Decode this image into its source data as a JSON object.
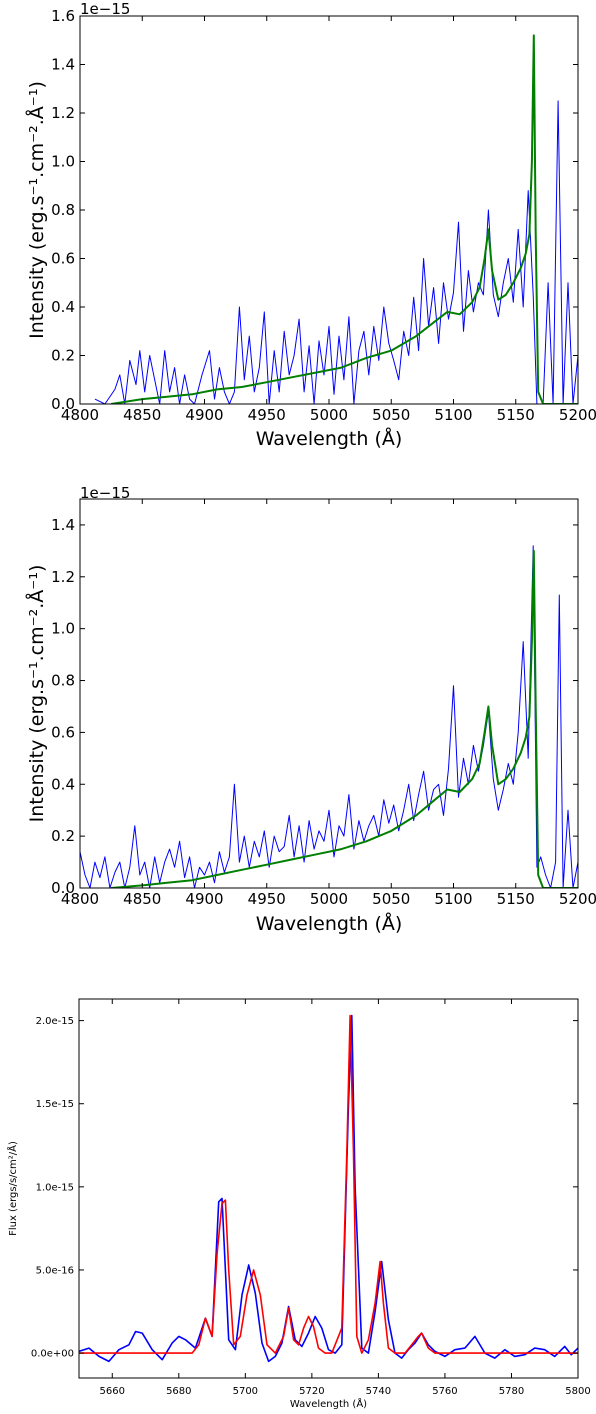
{
  "chart_data": [
    {
      "type": "line",
      "xlabel": "Wavelength (Å)",
      "ylabel": "Intensity (erg.s⁻¹.cm⁻².Å⁻¹)",
      "offset_text": "1e−15",
      "xlim": [
        4800,
        5200
      ],
      "ylim": [
        0,
        1.6
      ],
      "xticks": [
        "4800",
        "4850",
        "4900",
        "4950",
        "5000",
        "5050",
        "5100",
        "5150",
        "5200"
      ],
      "yticks": [
        "0.0",
        "0.2",
        "0.4",
        "0.6",
        "0.8",
        "1.0",
        "1.2",
        "1.4",
        "1.6"
      ],
      "grid": false,
      "colors": {
        "observed": "#0000ff",
        "model": "#007f00"
      },
      "series": [
        {
          "role": "observed",
          "x": [
            4812,
            4820,
            4828,
            4832,
            4836,
            4840,
            4845,
            4848,
            4852,
            4856,
            4860,
            4864,
            4868,
            4872,
            4876,
            4880,
            4884,
            4888,
            4892,
            4898,
            4904,
            4908,
            4912,
            4916,
            4920,
            4924,
            4928,
            4932,
            4936,
            4940,
            4944,
            4948,
            4952,
            4956,
            4960,
            4964,
            4968,
            4972,
            4976,
            4980,
            4984,
            4988,
            4992,
            4996,
            5000,
            5004,
            5008,
            5012,
            5016,
            5020,
            5024,
            5028,
            5032,
            5036,
            5040,
            5044,
            5048,
            5052,
            5056,
            5060,
            5064,
            5068,
            5072,
            5076,
            5080,
            5084,
            5088,
            5092,
            5096,
            5100,
            5104,
            5108,
            5112,
            5116,
            5120,
            5124,
            5128,
            5132,
            5136,
            5140,
            5144,
            5148,
            5152,
            5156,
            5160,
            5164,
            5167,
            5170,
            5172,
            5176,
            5180,
            5184,
            5188,
            5192,
            5196,
            5200
          ],
          "y": [
            0.02,
            0.0,
            0.06,
            0.12,
            0.0,
            0.18,
            0.08,
            0.22,
            0.05,
            0.2,
            0.1,
            0.0,
            0.22,
            0.05,
            0.15,
            0.0,
            0.12,
            0.02,
            0.0,
            0.12,
            0.22,
            0.02,
            0.15,
            0.05,
            0.0,
            0.05,
            0.4,
            0.1,
            0.28,
            0.05,
            0.15,
            0.38,
            0.0,
            0.22,
            0.05,
            0.3,
            0.12,
            0.2,
            0.35,
            0.05,
            0.24,
            0.0,
            0.26,
            0.12,
            0.32,
            0.04,
            0.28,
            0.1,
            0.36,
            0.0,
            0.22,
            0.3,
            0.12,
            0.32,
            0.18,
            0.4,
            0.25,
            0.18,
            0.1,
            0.3,
            0.2,
            0.44,
            0.22,
            0.6,
            0.32,
            0.48,
            0.25,
            0.5,
            0.35,
            0.46,
            0.75,
            0.3,
            0.55,
            0.38,
            0.5,
            0.45,
            0.8,
            0.45,
            0.36,
            0.5,
            0.6,
            0.42,
            0.72,
            0.4,
            0.88,
            0.45,
            0.0,
            0.0,
            0.0,
            0.5,
            0.0,
            1.25,
            0.0,
            0.5,
            0.0,
            0.2
          ]
        },
        {
          "role": "model",
          "x": [
            4825,
            4850,
            4870,
            4890,
            4910,
            4930,
            4950,
            4970,
            4990,
            5010,
            5030,
            5050,
            5070,
            5085,
            5095,
            5105,
            5115,
            5121,
            5125,
            5128,
            5131,
            5136,
            5142,
            5148,
            5154,
            5158,
            5161,
            5163,
            5164.5,
            5166,
            5168,
            5172,
            5200
          ],
          "y": [
            0.0,
            0.02,
            0.03,
            0.04,
            0.06,
            0.07,
            0.09,
            0.11,
            0.13,
            0.15,
            0.19,
            0.22,
            0.28,
            0.34,
            0.38,
            0.37,
            0.42,
            0.48,
            0.6,
            0.72,
            0.55,
            0.43,
            0.45,
            0.5,
            0.56,
            0.62,
            0.7,
            1.0,
            1.52,
            0.7,
            0.05,
            0.0,
            0.0
          ]
        }
      ]
    },
    {
      "type": "line",
      "xlabel": "Wavelength (Å)",
      "ylabel": "Intensity (erg.s⁻¹.cm⁻².Å⁻¹)",
      "offset_text": "1e−15",
      "xlim": [
        4800,
        5200
      ],
      "ylim": [
        0,
        1.5
      ],
      "xticks": [
        "4800",
        "4850",
        "4900",
        "4950",
        "5000",
        "5050",
        "5100",
        "5150",
        "5200"
      ],
      "yticks": [
        "0.0",
        "0.2",
        "0.4",
        "0.6",
        "0.8",
        "1.0",
        "1.2",
        "1.4"
      ],
      "grid": false,
      "colors": {
        "observed": "#0000ff",
        "model": "#007f00"
      },
      "series": [
        {
          "role": "observed",
          "x": [
            4800,
            4804,
            4808,
            4812,
            4816,
            4820,
            4824,
            4828,
            4832,
            4836,
            4840,
            4844,
            4848,
            4852,
            4856,
            4860,
            4864,
            4868,
            4872,
            4876,
            4880,
            4884,
            4888,
            4892,
            4896,
            4900,
            4904,
            4908,
            4912,
            4916,
            4920,
            4924,
            4928,
            4932,
            4936,
            4940,
            4944,
            4948,
            4952,
            4956,
            4960,
            4964,
            4968,
            4972,
            4976,
            4980,
            4984,
            4988,
            4992,
            4996,
            5000,
            5004,
            5008,
            5012,
            5016,
            5020,
            5024,
            5028,
            5032,
            5036,
            5040,
            5044,
            5048,
            5052,
            5056,
            5060,
            5064,
            5068,
            5072,
            5076,
            5080,
            5084,
            5088,
            5092,
            5096,
            5100,
            5104,
            5108,
            5112,
            5116,
            5120,
            5124,
            5128,
            5132,
            5136,
            5140,
            5144,
            5148,
            5152,
            5156,
            5160,
            5164,
            5167,
            5170,
            5174,
            5178,
            5182,
            5185,
            5188,
            5192,
            5196,
            5200
          ],
          "y": [
            0.14,
            0.05,
            0.0,
            0.1,
            0.04,
            0.12,
            0.0,
            0.06,
            0.1,
            0.0,
            0.08,
            0.24,
            0.05,
            0.1,
            0.0,
            0.12,
            0.02,
            0.1,
            0.15,
            0.08,
            0.18,
            0.04,
            0.12,
            0.0,
            0.08,
            0.05,
            0.1,
            0.02,
            0.14,
            0.06,
            0.12,
            0.4,
            0.1,
            0.2,
            0.08,
            0.18,
            0.12,
            0.22,
            0.08,
            0.2,
            0.14,
            0.16,
            0.28,
            0.12,
            0.24,
            0.1,
            0.26,
            0.15,
            0.22,
            0.18,
            0.3,
            0.12,
            0.24,
            0.2,
            0.36,
            0.15,
            0.26,
            0.18,
            0.24,
            0.28,
            0.2,
            0.34,
            0.25,
            0.32,
            0.22,
            0.3,
            0.4,
            0.26,
            0.36,
            0.45,
            0.3,
            0.38,
            0.4,
            0.28,
            0.46,
            0.78,
            0.35,
            0.5,
            0.4,
            0.55,
            0.45,
            0.55,
            0.68,
            0.42,
            0.3,
            0.38,
            0.48,
            0.4,
            0.6,
            0.95,
            0.5,
            1.32,
            0.08,
            0.12,
            0.05,
            0.0,
            0.1,
            1.13,
            0.0,
            0.3,
            0.0,
            0.1
          ]
        },
        {
          "role": "model",
          "x": [
            4825,
            4850,
            4870,
            4890,
            4910,
            4930,
            4950,
            4970,
            4990,
            5010,
            5030,
            5050,
            5070,
            5085,
            5095,
            5105,
            5115,
            5121,
            5125,
            5128,
            5131,
            5136,
            5142,
            5148,
            5154,
            5158,
            5161,
            5163,
            5164.5,
            5166,
            5168,
            5172,
            5200
          ],
          "y": [
            0.0,
            0.01,
            0.02,
            0.03,
            0.05,
            0.07,
            0.09,
            0.11,
            0.13,
            0.15,
            0.18,
            0.22,
            0.28,
            0.34,
            0.38,
            0.37,
            0.42,
            0.48,
            0.6,
            0.7,
            0.55,
            0.4,
            0.42,
            0.46,
            0.52,
            0.58,
            0.66,
            0.95,
            1.3,
            0.7,
            0.05,
            0.0,
            0.0
          ]
        }
      ]
    },
    {
      "type": "line",
      "xlabel": "Wavelength (Å)",
      "ylabel": "Flux (ergs/s/cm²/Å)",
      "xlim": [
        5650,
        5800
      ],
      "ylim": [
        -1.5e-16,
        2.13e-15
      ],
      "xticks": [
        "5660",
        "5680",
        "5700",
        "5720",
        "5740",
        "5760",
        "5780",
        "5800"
      ],
      "yticks": [
        "0.0e+00",
        "5.0e-16",
        "1.0e-15",
        "1.5e-15",
        "2.0e-15"
      ],
      "ytick_values": [
        0,
        5e-16,
        1e-15,
        1.5e-15,
        2e-15
      ],
      "grid": false,
      "colors": {
        "observed": "#0000ff",
        "model": "#ff0000"
      },
      "series": [
        {
          "role": "observed",
          "x": [
            5650,
            5653,
            5656,
            5659,
            5662,
            5665,
            5667,
            5669,
            5672,
            5675,
            5678,
            5680,
            5682,
            5685,
            5688,
            5690,
            5692,
            5693,
            5694,
            5695,
            5697,
            5699,
            5701,
            5703,
            5705,
            5707,
            5709,
            5711,
            5713,
            5715,
            5717,
            5719,
            5721,
            5723,
            5725,
            5727,
            5729,
            5731,
            5732,
            5733,
            5735,
            5737,
            5739,
            5741,
            5743,
            5745,
            5747,
            5749,
            5751,
            5753,
            5755,
            5757,
            5760,
            5763,
            5766,
            5769,
            5772,
            5775,
            5778,
            5781,
            5784,
            5787,
            5790,
            5793,
            5796,
            5798,
            5800
          ],
          "y": [
            1e-17,
            3e-17,
            -2e-17,
            -5e-17,
            2e-17,
            5e-17,
            1.3e-16,
            1.2e-16,
            2e-17,
            -4e-17,
            6e-17,
            1e-16,
            8e-17,
            3e-17,
            2.1e-16,
            1e-16,
            9.1e-16,
            9.3e-16,
            5e-16,
            8e-17,
            2e-17,
            3.5e-16,
            5.3e-16,
            3.6e-16,
            6e-17,
            -5e-17,
            -2e-17,
            6e-17,
            2.8e-16,
            8e-17,
            4e-17,
            1.2e-16,
            2.2e-16,
            1.5e-16,
            2e-17,
            0.0,
            5e-17,
            1.5e-15,
            2.03e-15,
            1e-15,
            3e-17,
            0.0,
            2.5e-16,
            5.5e-16,
            2e-16,
            0.0,
            -3e-17,
            2e-17,
            6e-17,
            1.2e-16,
            5e-17,
            1e-17,
            -2e-17,
            2e-17,
            3e-17,
            1e-16,
            0.0,
            -3e-17,
            2e-17,
            -2e-17,
            -1e-17,
            3e-17,
            2e-17,
            -2e-17,
            4e-17,
            -1e-17,
            3e-17
          ]
        },
        {
          "role": "model",
          "x": [
            5650,
            5684,
            5686,
            5688,
            5690,
            5691.5,
            5693,
            5694,
            5695,
            5696.5,
            5698.5,
            5700.5,
            5702.5,
            5704.5,
            5706.5,
            5709,
            5711.5,
            5713,
            5714.5,
            5716,
            5717.5,
            5719,
            5720.5,
            5722,
            5724,
            5726,
            5729,
            5730.5,
            5731.5,
            5732.5,
            5733.5,
            5735,
            5737,
            5739,
            5740.5,
            5741.5,
            5743,
            5745,
            5748,
            5750,
            5752,
            5753,
            5755,
            5757,
            5759,
            5800
          ],
          "y": [
            0.0,
            0.0,
            5e-17,
            2.1e-16,
            1e-16,
            6e-16,
            9e-16,
            9.2e-16,
            5e-16,
            5e-17,
            1e-16,
            3.5e-16,
            5e-16,
            3.5e-16,
            5e-17,
            0.0,
            1e-16,
            2.7e-16,
            8e-17,
            5e-17,
            1.5e-16,
            2.2e-16,
            1.6e-16,
            3e-17,
            0.0,
            0.0,
            1.5e-16,
            1.2e-15,
            2.03e-15,
            1.2e-15,
            1e-16,
            0.0,
            8e-17,
            3e-16,
            5.5e-16,
            3e-16,
            3e-17,
            0.0,
            0.0,
            5e-17,
            1e-16,
            1.2e-16,
            3e-17,
            0.0,
            0.0,
            0.0
          ]
        }
      ]
    }
  ]
}
